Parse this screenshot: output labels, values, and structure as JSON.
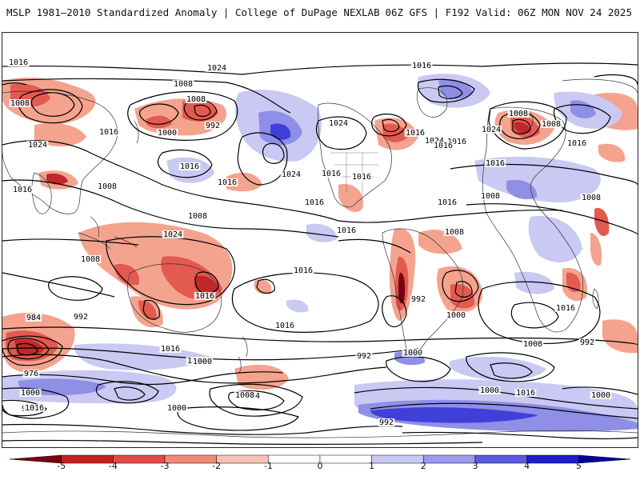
{
  "header": {
    "title_left": "MSLP 1981–2010 Standardized Anomaly | College of DuPage NEXLAB",
    "title_right": "06Z GFS | F192 Valid: 06Z MON NOV 24 2025"
  },
  "map": {
    "isobar_labels": [
      "1016",
      "1024",
      "1016",
      "1008",
      "1008",
      "1008",
      "992",
      "1000",
      "1016",
      "1024",
      "1016",
      "1024",
      "1016",
      "1016",
      "1024",
      "1016",
      "1024",
      "1016",
      "1016",
      "1024",
      "1016",
      "1008",
      "1008",
      "1016",
      "1016",
      "1008",
      "1008",
      "1016",
      "1008",
      "1008",
      "1016",
      "1024",
      "1008",
      "1016",
      "1016",
      "1016",
      "1000",
      "992",
      "1000",
      "1008",
      "1016",
      "1016",
      "1016",
      "1008",
      "992",
      "1000",
      "1016",
      "1008",
      "992",
      "984",
      "992",
      "976",
      "984",
      "1000",
      "1008",
      "992",
      "1000",
      "992",
      "1000",
      "1016",
      "1000",
      "1016"
    ]
  },
  "colorbar": {
    "labels": [
      "-5",
      "-4",
      "-3",
      "-2",
      "-1",
      "0",
      "1",
      "2",
      "3",
      "4",
      "5"
    ],
    "colors": [
      "#7a0010",
      "#c81e1e",
      "#e04a4a",
      "#ef8a78",
      "#f7c2b4",
      "#ffffff",
      "#ffffff",
      "#c8c8f5",
      "#9a9aee",
      "#5a5ae0",
      "#1e1ed0",
      "#0000a0"
    ]
  },
  "legend_colors": {
    "neg_strong": "#c0282a",
    "neg_mid": "#e35a50",
    "neg_light": "#f4a38e",
    "pos_light": "#c9c9f4",
    "pos_mid": "#8f8fe8",
    "pos_strong": "#4040d8"
  }
}
